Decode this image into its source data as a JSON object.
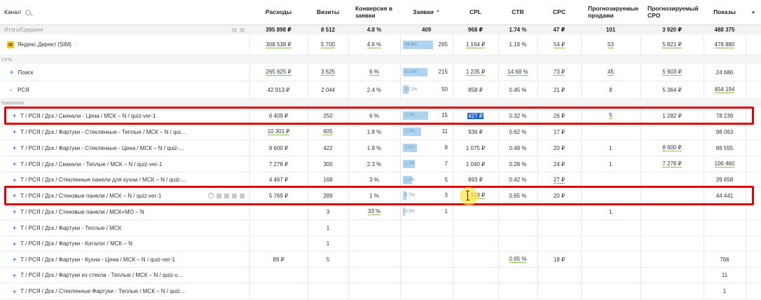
{
  "header": {
    "channel": "Канал",
    "columns": [
      "Расходы",
      "Визиты",
      "Конверсия в заявки",
      "Заявки",
      "CPL",
      "CTR",
      "CPC",
      "Прогнозируемые продажи",
      "Прогнозируемый CPO",
      "Показы"
    ],
    "sort_marker": "▼",
    "add_column": "+"
  },
  "total": {
    "label": "Итого/Среднее",
    "values": [
      "395 898 ₽",
      "8 512",
      "4.8 %",
      "409",
      "968 ₽",
      "1.74 %",
      "47 ₽",
      "101",
      "3 920 ₽",
      "488 375"
    ]
  },
  "yandex_row": {
    "label": "Яндекс.Директ (SIM)",
    "values": [
      "308 538 ₽",
      "5 700",
      "4.6 %",
      "",
      "1 164 ₽",
      "1.19 %",
      "54 ₽",
      "53",
      "5 821 ₽",
      "478 880"
    ],
    "bar": {
      "pct": "64.8%",
      "value": "265",
      "fill": 0.648
    }
  },
  "sections": {
    "network": "Сеть",
    "campaign": "Кампания"
  },
  "network_rows": [
    {
      "expand": "+",
      "label": "Поиск",
      "values": [
        "265 625 ₽",
        "3 625",
        "6 %",
        "",
        "1 235 ₽",
        "14.68 %",
        "73 ₽",
        "45",
        "5 903 ₽",
        "24 686"
      ],
      "bar": {
        "pct": "52.6%",
        "value": "215",
        "fill": 0.526
      }
    },
    {
      "expand": "-",
      "label": "РСЯ",
      "values": [
        "42 913 ₽",
        "2 044",
        "2.4 %",
        "",
        "858 ₽",
        "0.45 %",
        "21 ₽",
        "8",
        "5 364 ₽",
        "454 194"
      ],
      "bar": {
        "pct": "12.2%",
        "value": "50",
        "fill": 0.122
      }
    }
  ],
  "campaign_rows": [
    {
      "label": "T / РСЯ / Дск / Скинали - Цена / МСК –  N / quiz-ver-1",
      "values": [
        "6 409 ₽",
        "250",
        "6 %",
        "",
        "427 ₽",
        "0.32 %",
        "26 ₽",
        "5",
        "1 282 ₽",
        "78 239"
      ],
      "bar": {
        "pct": "3.7%",
        "value": "15",
        "fill": 0.54
      }
    },
    {
      "label": "T / РСЯ / Дск / Фартуки - Стеклянные - Теплые / МСК –  N / qui...",
      "values": [
        "10 301 ₽",
        "605",
        "1.8 %",
        "",
        "936 ₽",
        "0.62 %",
        "17 ₽",
        "",
        "",
        "98 063"
      ],
      "bar": {
        "pct": "2.7%",
        "value": "11",
        "fill": 0.4
      }
    },
    {
      "label": "T / РСЯ / Дск / Фартуки - Стеклянные - Цена / МСК –  N / quiz-...",
      "values": [
        "8 600 ₽",
        "422",
        "1.9 %",
        "",
        "1 075 ₽",
        "0.49 %",
        "20 ₽",
        "1",
        "8 600 ₽",
        "86 555"
      ],
      "bar": {
        "pct": "2.0%",
        "value": "8",
        "fill": 0.3
      }
    },
    {
      "label": "T / РСЯ / Дск / Скинали - Теплые / МСК –  N / quiz-ver-1",
      "values": [
        "7 278 ₽",
        "300",
        "2.3 %",
        "",
        "1 040 ₽",
        "0.28 %",
        "24 ₽",
        "1",
        "7 278 ₽",
        "106 460"
      ],
      "bar": {
        "pct": "1.7%",
        "value": "7",
        "fill": 0.26
      }
    },
    {
      "label": "T / РСЯ / Дск / Стеклянные панели для кухни / МСК –  N / quiz-...",
      "values": [
        "4 467 ₽",
        "168",
        "3 %",
        "",
        "893 ₽",
        "0.42 %",
        "27 ₽",
        "",
        "",
        "39 658"
      ],
      "bar": {
        "pct": "1.2%",
        "value": "5",
        "fill": 0.2
      }
    },
    {
      "label": "T / РСЯ / Дск / Стеновые панели / МСК –  N / quiz-ver-1",
      "values": [
        "5 769 ₽",
        "289",
        "1 %",
        "",
        "1 923 ₽",
        "0.65 %",
        "20 ₽",
        "",
        "",
        "44 441"
      ],
      "bar": {
        "pct": "0.7%",
        "value": "3",
        "fill": 0.08
      }
    },
    {
      "label": "T / РСЯ / Дск / Стеновые панели / МСК+МО –  N",
      "values": [
        "",
        "3",
        "33 %",
        "",
        "",
        "",
        "",
        "1",
        "",
        ""
      ],
      "bar": {
        "pct": "0.2%",
        "value": "1",
        "fill": 0.05
      }
    },
    {
      "label": "T / РСЯ / Дск / Фартуки - Теплые / МСК",
      "values": [
        "",
        "1",
        "",
        "",
        "",
        "",
        "",
        "",
        "",
        ""
      ],
      "bar": null
    },
    {
      "label": "T / РСЯ / Дск / Фартуки - Каталог / МСК –  N",
      "values": [
        "",
        "1",
        "",
        "",
        "",
        "",
        "",
        "",
        "",
        ""
      ],
      "bar": null
    },
    {
      "label": "T / РСЯ / Дск / Фартуки - Кухни - Цена / МСК –  N / quiz-ver-1",
      "values": [
        "89 ₽",
        "5",
        "",
        "",
        "",
        "0.65 %",
        "18 ₽",
        "",
        "",
        "766"
      ],
      "bar": null
    },
    {
      "label": "T / РСЯ / Дск / Фартуки из стекла - Теплые / МСК –  N / quiz-v...",
      "values": [
        "",
        "",
        "",
        "",
        "",
        "",
        "",
        "",
        "",
        "11"
      ],
      "bar": null
    },
    {
      "label": "T / РСЯ / Дск / Стеклянные Фартуки - Теплые / МСК –  N / quiz...",
      "values": [
        "",
        "",
        "",
        "",
        "",
        "",
        "",
        "",
        "",
        "1"
      ],
      "bar": null
    }
  ],
  "colors": {
    "accent": "#2f80ed",
    "bar": "#aed4f1",
    "highlight": "#e00000",
    "underline": "#8bc34a",
    "selection": "#1e66d6"
  },
  "icons": [
    "search-icon",
    "yandex-direct-icon",
    "heart-icon",
    "expand-plus-icon",
    "collapse-minus-icon",
    "help-icon",
    "row-action-icons"
  ]
}
